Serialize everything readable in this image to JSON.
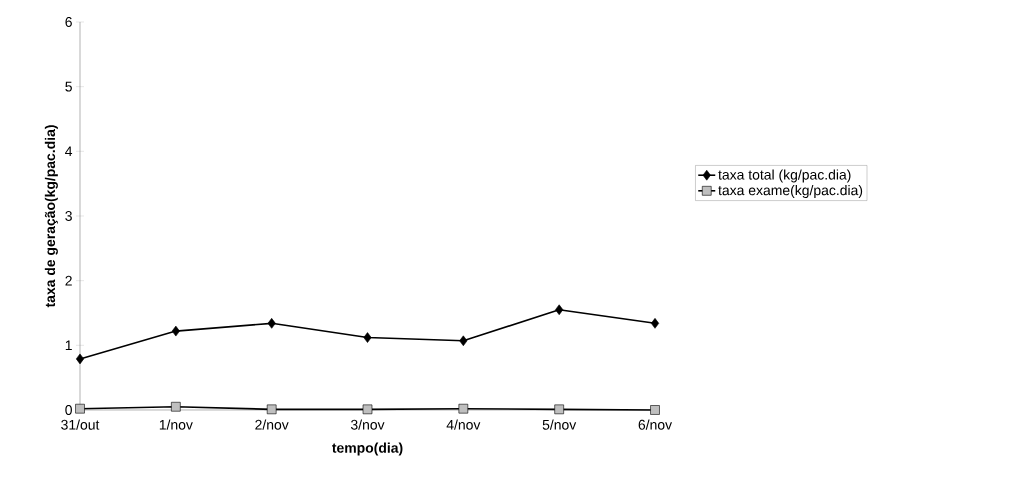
{
  "chart_data": {
    "type": "line",
    "xlabel": "tempo(dia)",
    "ylabel": "taxa de geração(kg/pac.dia)",
    "categories": [
      "31/out",
      "1/nov",
      "2/nov",
      "3/nov",
      "4/nov",
      "5/nov",
      "6/nov"
    ],
    "series": [
      {
        "name": "taxa total (kg/pac.dia)",
        "color": "#000000",
        "marker": "diamond",
        "values": [
          0.79,
          1.22,
          1.34,
          1.12,
          1.07,
          1.55,
          1.34
        ]
      },
      {
        "name": "taxa exame(kg/pac.dia)",
        "color": "#000000",
        "marker": "square",
        "values": [
          0.02,
          0.05,
          0.01,
          0.01,
          0.02,
          0.01,
          0.0
        ]
      }
    ],
    "ylim": [
      0,
      6
    ],
    "yticks": [
      0,
      1,
      2,
      3,
      4,
      5,
      6
    ],
    "legend": "right",
    "grid": false
  }
}
